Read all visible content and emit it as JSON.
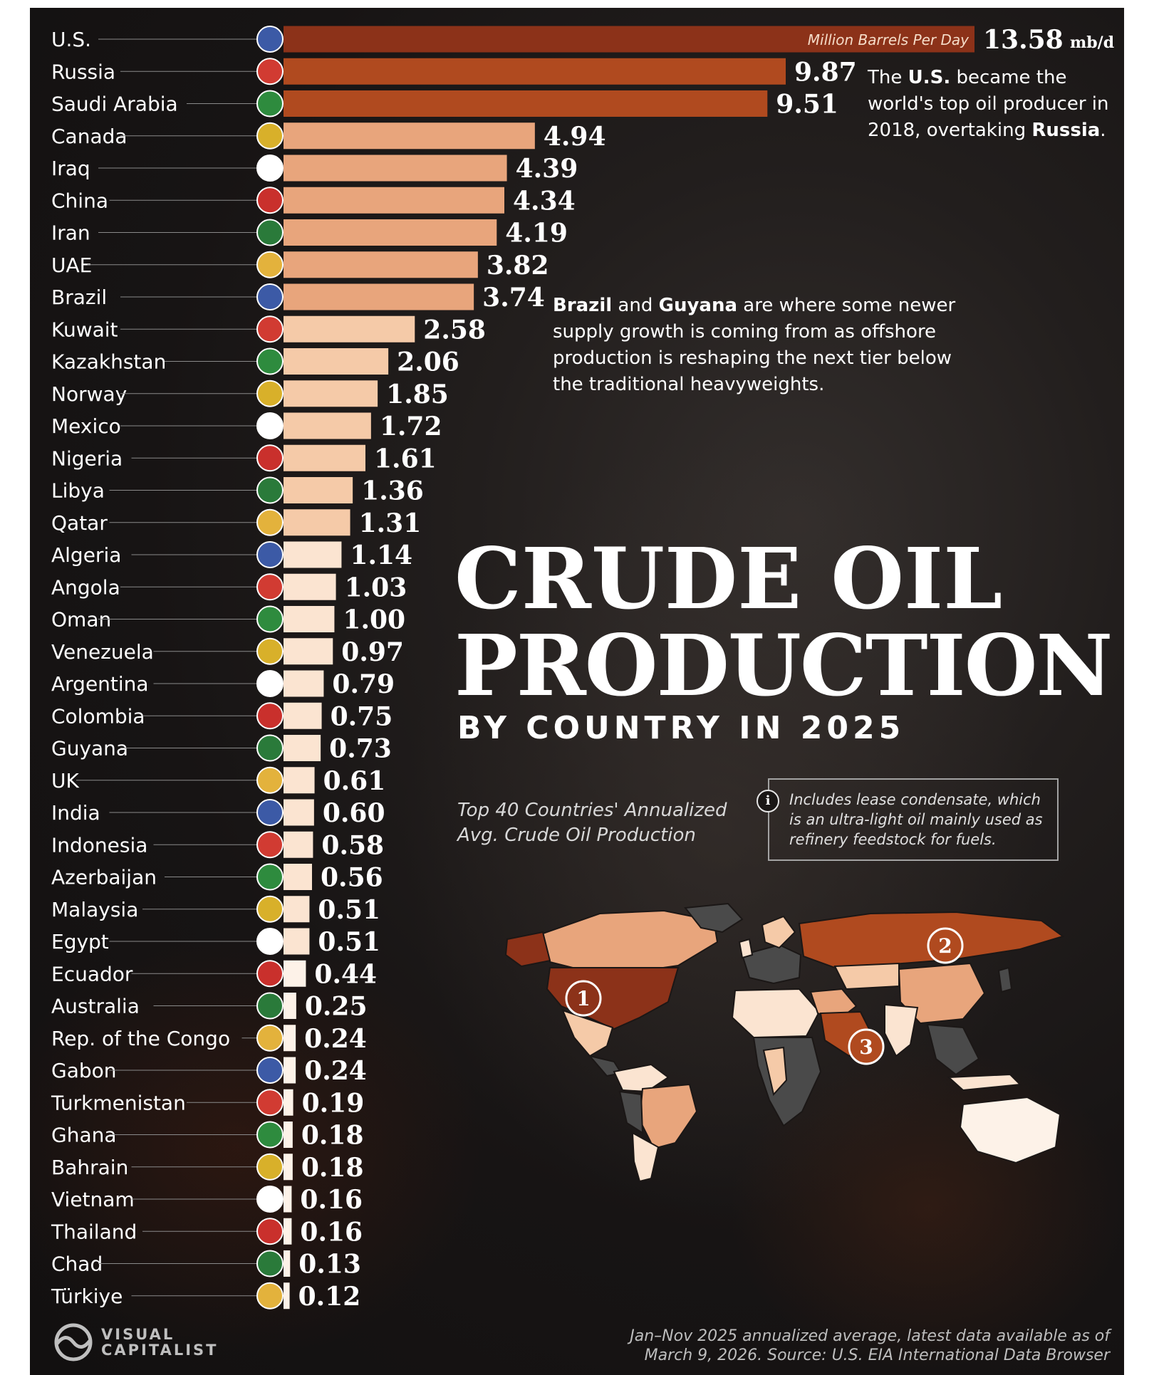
{
  "chart_data": {
    "type": "bar",
    "orientation": "horizontal",
    "title": "CRUDE OIL PRODUCTION",
    "subtitle": "BY COUNTRY IN 2025",
    "description": "Top 40 Countries' Annualized Avg. Crude Oil Production",
    "unit_label": "Million Barrels Per Day",
    "unit_suffix": "mb/d",
    "categories": [
      "U.S.",
      "Russia",
      "Saudi Arabia",
      "Canada",
      "Iraq",
      "China",
      "Iran",
      "UAE",
      "Brazil",
      "Kuwait",
      "Kazakhstan",
      "Norway",
      "Mexico",
      "Nigeria",
      "Libya",
      "Qatar",
      "Algeria",
      "Angola",
      "Oman",
      "Venezuela",
      "Argentina",
      "Colombia",
      "Guyana",
      "UK",
      "India",
      "Indonesia",
      "Azerbaijan",
      "Malaysia",
      "Egypt",
      "Ecuador",
      "Australia",
      "Rep. of the Congo",
      "Gabon",
      "Turkmenistan",
      "Ghana",
      "Bahrain",
      "Vietnam",
      "Thailand",
      "Chad",
      "Türkiye"
    ],
    "value_labels": [
      "13.58",
      "9.87",
      "9.51",
      "4.94",
      "4.39",
      "4.34",
      "4.19",
      "3.82",
      "3.74",
      "2.58",
      "2.06",
      "1.85",
      "1.72",
      "1.61",
      "1.36",
      "1.31",
      "1.14",
      "1.03",
      "1.00",
      "0.97",
      "0.79",
      "0.75",
      "0.73",
      "0.61",
      "0.60",
      "0.58",
      "0.56",
      "0.51",
      "0.51",
      "0.44",
      "0.25",
      "0.24",
      "0.24",
      "0.19",
      "0.18",
      "0.18",
      "0.16",
      "0.16",
      "0.13",
      "0.12"
    ],
    "values": [
      13.58,
      9.87,
      9.51,
      4.94,
      4.39,
      4.34,
      4.19,
      3.82,
      3.74,
      2.58,
      2.06,
      1.85,
      1.72,
      1.61,
      1.36,
      1.31,
      1.14,
      1.03,
      1.0,
      0.97,
      0.79,
      0.75,
      0.73,
      0.61,
      0.6,
      0.58,
      0.56,
      0.51,
      0.51,
      0.44,
      0.25,
      0.24,
      0.24,
      0.19,
      0.18,
      0.18,
      0.16,
      0.16,
      0.13,
      0.12
    ],
    "xlim": [
      0,
      13.58
    ],
    "grid": false,
    "colors": {
      "top": "#8c3219",
      "tier2": "#b04a1f",
      "tier3": "#e8a57c",
      "tier4": "#f5caa8",
      "tier5": "#fbe4d1",
      "tier6": "#fdf2e8"
    }
  },
  "annotations": {
    "us_note": {
      "pre": "The ",
      "b1": "U.S.",
      "mid": " became the world's top oil producer in 2018, overtaking ",
      "b2": "Russia",
      "post": "."
    },
    "brazil_note": {
      "b1": "Brazil",
      "and": " and ",
      "b2": "Guyana",
      "post": " are where some newer supply growth is coming from as offshore production is reshaping the next tier below the traditional heavyweights."
    }
  },
  "info": "Includes lease condensate, which is an ultra-light oil mainly used as refinery feedstock for fuels.",
  "info_icon": "info-icon",
  "map_markers": [
    "1",
    "2",
    "3"
  ],
  "source": "Jan–Nov 2025 annualized average, latest data available as of March 9, 2026. Source: U.S. EIA International Data Browser",
  "brand": {
    "line1": "VISUAL",
    "line2": "CAPITALIST"
  }
}
